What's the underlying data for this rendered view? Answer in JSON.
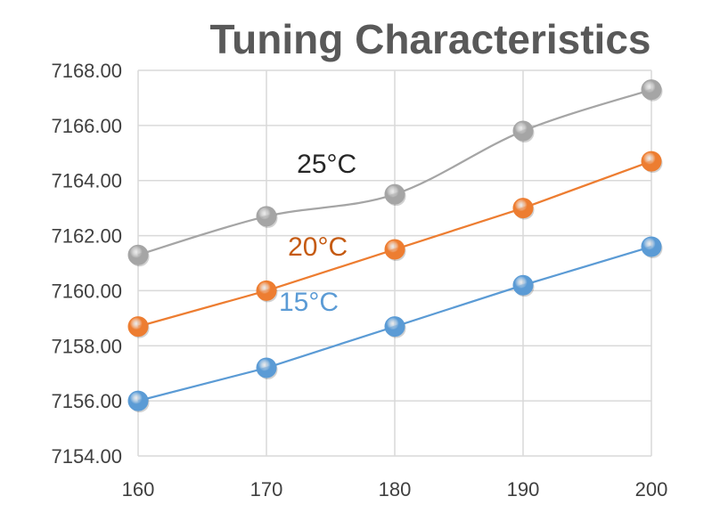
{
  "chart_data": {
    "type": "line",
    "title": "Tuning Characteristics",
    "xlabel": "",
    "ylabel": "",
    "x": [
      160,
      170,
      180,
      190,
      200
    ],
    "x_tick_labels": [
      "160",
      "170",
      "180",
      "190",
      "200"
    ],
    "ylim": [
      7154,
      7168
    ],
    "y_ticks": [
      7154,
      7156,
      7158,
      7160,
      7162,
      7164,
      7166,
      7168
    ],
    "y_tick_labels": [
      "7154.00",
      "7156.00",
      "7158.00",
      "7160.00",
      "7162.00",
      "7164.00",
      "7166.00",
      "7168.00"
    ],
    "grid": true,
    "series": [
      {
        "name": "25°C",
        "color": "#a5a5a5",
        "smooth": true,
        "values": [
          7161.3,
          7162.7,
          7163.5,
          7165.8,
          7167.3
        ]
      },
      {
        "name": "20°C",
        "color": "#ed7d31",
        "smooth": false,
        "values": [
          7158.7,
          7160.0,
          7161.5,
          7163.0,
          7164.7
        ]
      },
      {
        "name": "15°C",
        "color": "#5b9bd5",
        "smooth": false,
        "values": [
          7156.0,
          7157.2,
          7158.7,
          7160.2,
          7161.6
        ]
      }
    ],
    "annotations": [
      {
        "text": "25°C",
        "color": "#262626",
        "series": "25°C",
        "x": 174.7,
        "y": 7164.6
      },
      {
        "text": "20°C",
        "color": "#c55a11",
        "series": "20°C",
        "x": 174.0,
        "y": 7161.6
      },
      {
        "text": "15°C",
        "color": "#5b9bd5",
        "series": "15°C",
        "x": 173.3,
        "y": 7159.6
      }
    ]
  }
}
